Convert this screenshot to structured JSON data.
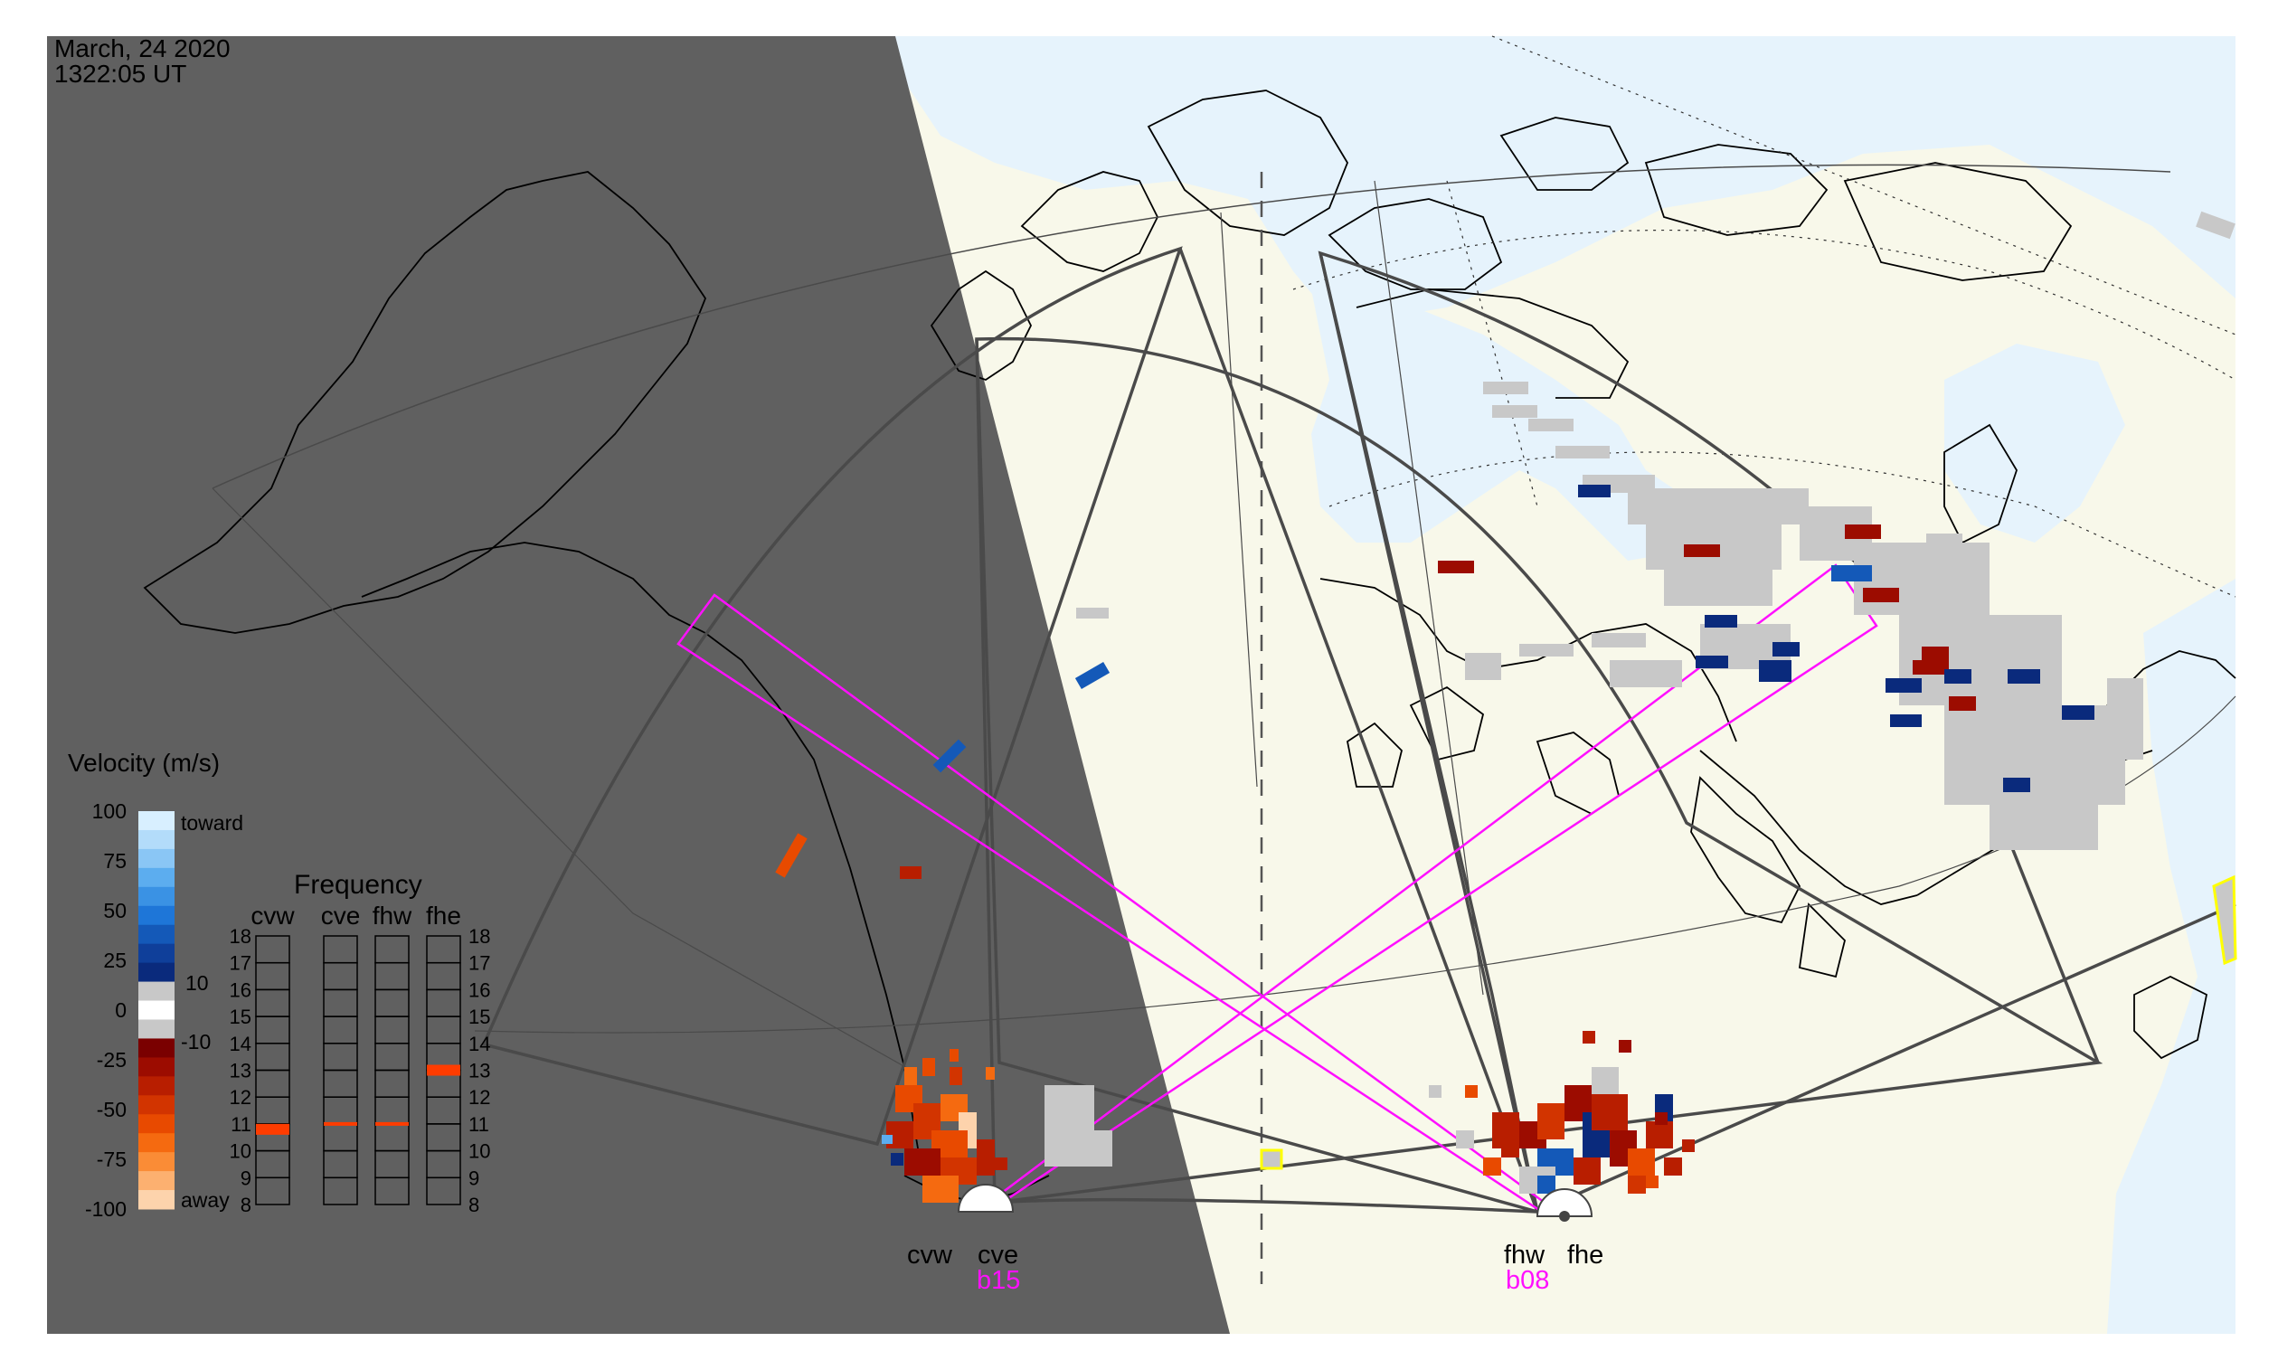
{
  "timestamp": {
    "date": "March, 24 2020",
    "time": "1322:05 UT"
  },
  "colors": {
    "night": "#606060",
    "land": "#f8f8ea",
    "ocean": "#e6f3fc",
    "fov_outline": "#4a4a4a",
    "beam_highlight": "#ff10ff",
    "ground_scatter": "#c8c8c8",
    "flag_yellow": "#ffff00"
  },
  "radars": [
    {
      "id": "cvw",
      "label": "cvw"
    },
    {
      "id": "cve",
      "label": "cve"
    },
    {
      "id": "fhw",
      "label": "fhw"
    },
    {
      "id": "fhe",
      "label": "fhe"
    }
  ],
  "beam_labels": {
    "west_pair": "b15",
    "east_pair": "b08"
  },
  "velocity_legend": {
    "title": "Velocity (m/s)",
    "ticks": [
      "100",
      "75",
      "50",
      "25",
      "0",
      "-25",
      "-50",
      "-75",
      "-100"
    ],
    "label_toward": "toward",
    "label_away": "away",
    "ground_scatter_upper": "10",
    "ground_scatter_lower": "-10",
    "gradient": [
      "#d8efff",
      "#b3dcfa",
      "#8ac6f5",
      "#5cadef",
      "#3a92e4",
      "#1e76d8",
      "#1459b8",
      "#0f3f9a",
      "#0a2a7c",
      "#c8c8c8",
      "#ffffff",
      "#c8c8c8",
      "#7a0000",
      "#9c0c00",
      "#b81e00",
      "#d23400",
      "#e84a00",
      "#f56a10",
      "#fa8c36",
      "#fcb070",
      "#fdd3ac"
    ]
  },
  "frequency_legend": {
    "title": "Frequency",
    "columns": [
      "cvw",
      "cve",
      "fhw",
      "fhe"
    ],
    "ticks": [
      "18",
      "17",
      "16",
      "15",
      "14",
      "13",
      "12",
      "11",
      "10",
      "9",
      "8"
    ],
    "values_mhz": [
      10.8,
      11.0,
      11.0,
      13.0
    ],
    "bar_color": "#ff3c00"
  }
}
